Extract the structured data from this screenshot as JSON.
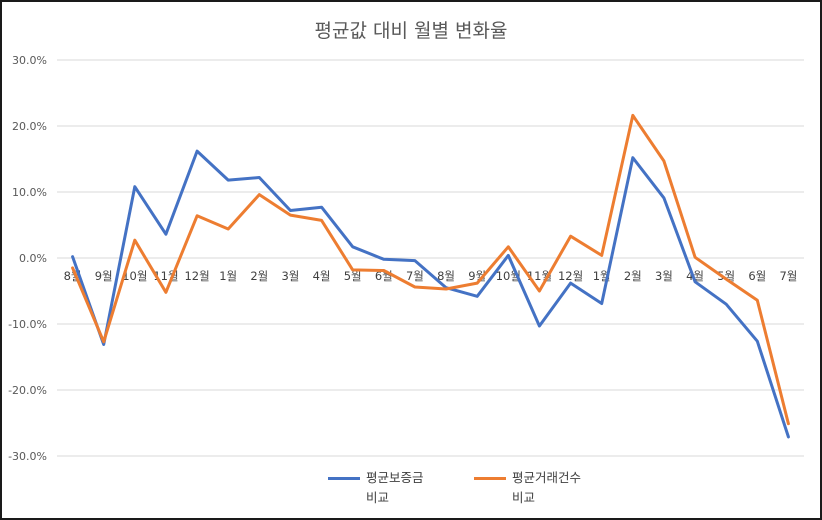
{
  "chart_data": {
    "type": "line",
    "title": "평균값 대비 월별 변화율",
    "categories": [
      "8월",
      "9월",
      "10월",
      "11월",
      "12월",
      "1월",
      "2월",
      "3월",
      "4월",
      "5월",
      "6월",
      "7월",
      "8월",
      "9월",
      "10월",
      "11월",
      "12월",
      "1월",
      "2월",
      "3월",
      "4월",
      "5월",
      "6월",
      "7월"
    ],
    "ylim": [
      -0.3,
      0.3
    ],
    "yticks": [
      "-30.0%",
      "-20.0%",
      "-10.0%",
      "0.0%",
      "10.0%",
      "20.0%",
      "30.0%"
    ],
    "grid": true,
    "legend_position": "bottom",
    "series": [
      {
        "name": "평균보증금 비교",
        "color": "#4472C4",
        "values": [
          0.002,
          -0.131,
          0.108,
          0.036,
          0.162,
          0.118,
          0.122,
          0.072,
          0.077,
          0.017,
          -0.002,
          -0.004,
          -0.045,
          -0.058,
          0.004,
          -0.103,
          -0.038,
          -0.069,
          0.152,
          0.091,
          -0.036,
          -0.07,
          -0.126,
          -0.271
        ]
      },
      {
        "name": "평균거래건수 비교",
        "color": "#ED7D31",
        "values": [
          -0.015,
          -0.127,
          0.027,
          -0.052,
          0.064,
          0.044,
          0.096,
          0.065,
          0.057,
          -0.018,
          -0.019,
          -0.044,
          -0.047,
          -0.038,
          0.017,
          -0.05,
          0.033,
          0.004,
          0.216,
          0.147,
          0.001,
          -0.032,
          -0.064,
          -0.251
        ]
      }
    ]
  },
  "legend": {
    "s1_line1": "평균보증금",
    "s1_line2": "비교",
    "s2_line1": "평균거래건수",
    "s2_line2": "비교"
  }
}
